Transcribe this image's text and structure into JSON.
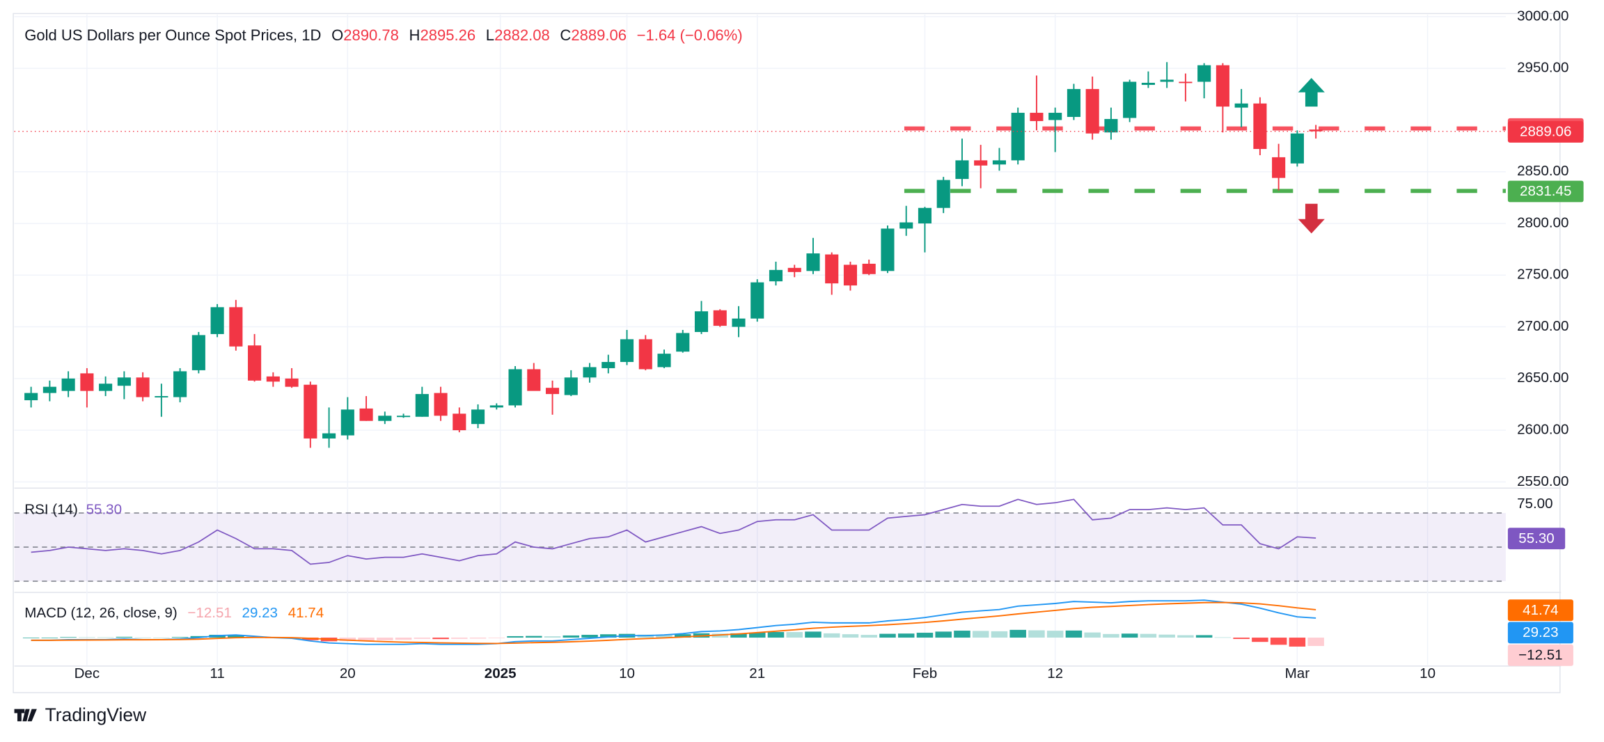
{
  "chart_data": {
    "type": "candlestick",
    "title": "Gold US Dollars per Ounce Spot Prices, 1D",
    "ohlc_labels": [
      "O",
      "H",
      "L",
      "C"
    ],
    "change": "−1.64 (−0.06%)",
    "up_color": "#089981",
    "down_color": "#f23645",
    "open": [
      2629,
      2636,
      2638,
      2655,
      2638,
      2643,
      2651,
      2632,
      2632,
      2658,
      2693,
      2719,
      2682,
      2652,
      2650,
      2644,
      2592,
      2595,
      2621,
      2609,
      2614,
      2613,
      2636,
      2616,
      2606,
      2622,
      2624,
      2659,
      2641,
      2634,
      2651,
      2660,
      2666,
      2688,
      2661,
      2676,
      2695,
      2716,
      2700,
      2708,
      2744,
      2757,
      2754,
      2770,
      2760,
      2761,
      2754,
      2795,
      2800,
      2815,
      2843,
      2861,
      2857,
      2861,
      2907,
      2900,
      2903,
      2930,
      2888,
      2902,
      2934,
      2937,
      2937,
      2937,
      2953,
      2912,
      2916,
      2864,
      2858,
      2890.78
    ],
    "high": [
      2642,
      2648,
      2657,
      2660,
      2652,
      2657,
      2656,
      2645,
      2660,
      2695,
      2722,
      2726,
      2693,
      2656,
      2660,
      2647,
      2622,
      2632,
      2633,
      2618,
      2616,
      2642,
      2642,
      2622,
      2625,
      2626,
      2662,
      2665,
      2648,
      2658,
      2665,
      2673,
      2697,
      2692,
      2678,
      2697,
      2725,
      2717,
      2720,
      2746,
      2763,
      2760,
      2786,
      2772,
      2763,
      2765,
      2798,
      2817,
      2816,
      2845,
      2882,
      2876,
      2873,
      2912,
      2943,
      2912,
      2935,
      2942,
      2912,
      2939,
      2947,
      2956,
      2945,
      2955,
      2955,
      2930,
      2922,
      2877,
      2890,
      2895.26
    ],
    "low": [
      2622,
      2628,
      2632,
      2622,
      2633,
      2630,
      2628,
      2613,
      2627,
      2655,
      2690,
      2677,
      2647,
      2642,
      2641,
      2583,
      2583,
      2591,
      2609,
      2606,
      2612,
      2613,
      2609,
      2598,
      2602,
      2620,
      2622,
      2640,
      2615,
      2633,
      2646,
      2655,
      2663,
      2658,
      2660,
      2675,
      2693,
      2700,
      2690,
      2705,
      2740,
      2748,
      2751,
      2731,
      2735,
      2750,
      2752,
      2788,
      2772,
      2810,
      2836,
      2834,
      2851,
      2857,
      2890,
      2869,
      2900,
      2881,
      2881,
      2898,
      2931,
      2931,
      2918,
      2921,
      2888,
      2893,
      2866,
      2832,
      2855,
      2882.08
    ],
    "close": [
      2636,
      2642,
      2650,
      2638,
      2645,
      2651,
      2632,
      2633,
      2657,
      2692,
      2719,
      2681,
      2648,
      2647,
      2642,
      2592,
      2597,
      2620,
      2609,
      2614,
      2614,
      2635,
      2614,
      2600,
      2620,
      2624,
      2659,
      2638,
      2635,
      2651,
      2661,
      2666,
      2688,
      2659,
      2674,
      2694,
      2715,
      2701,
      2708,
      2743,
      2755,
      2753,
      2771,
      2742,
      2740,
      2751,
      2795,
      2801,
      2815,
      2842,
      2861,
      2856,
      2861,
      2907,
      2899,
      2907,
      2930,
      2887,
      2901,
      2937,
      2936,
      2939,
      2936,
      2953,
      2913,
      2916,
      2872,
      2844,
      2887,
      2889.06
    ],
    "ylim": [
      2545,
      3002
    ],
    "yticks": [
      {
        "value": 3000,
        "label": "3000.00"
      },
      {
        "value": 2950,
        "label": "2950.00"
      },
      {
        "value": 2850,
        "label": "2850.00"
      },
      {
        "value": 2800,
        "label": "2800.00"
      },
      {
        "value": 2750,
        "label": "2750.00"
      },
      {
        "value": 2700,
        "label": "2700.00"
      },
      {
        "value": 2650,
        "label": "2650.00"
      },
      {
        "value": 2600,
        "label": "2600.00"
      },
      {
        "value": 2550,
        "label": "2550.00"
      }
    ],
    "xlim": [
      -0.9,
      79.2
    ],
    "xticks": [
      {
        "value": 3,
        "label": "Dec"
      },
      {
        "value": 10,
        "label": "11"
      },
      {
        "value": 17,
        "label": "20"
      },
      {
        "value": 25.2,
        "label": "2025"
      },
      {
        "value": 32,
        "label": "10"
      },
      {
        "value": 39,
        "label": "21"
      },
      {
        "value": 48,
        "label": "Feb"
      },
      {
        "value": 55,
        "label": "12"
      },
      {
        "value": 68,
        "label": "Mar"
      },
      {
        "value": 75,
        "label": "10"
      }
    ],
    "grid": true,
    "levels": [
      {
        "value": 2891.86,
        "color": "#f7525f"
      },
      {
        "value": 2831.45,
        "color": "#4caf50"
      }
    ],
    "rsi": {
      "title": "RSI (14)",
      "color": "#7e57c2",
      "last_value_label": "55.30",
      "values": [
        47,
        48,
        50,
        49,
        48,
        49,
        48,
        46,
        48,
        53,
        60,
        55,
        49,
        49,
        48,
        40,
        41,
        45,
        43,
        44,
        44,
        46,
        44,
        42,
        45,
        46,
        53,
        50,
        49,
        52,
        55,
        56,
        60,
        53,
        56,
        59,
        62,
        58,
        60,
        65,
        66,
        66,
        69,
        60,
        60,
        60,
        67,
        68,
        69,
        72,
        75,
        74,
        74,
        78,
        75,
        76,
        78,
        66,
        67,
        72,
        72,
        73,
        72,
        73,
        63,
        63,
        52,
        49,
        56,
        55.3
      ],
      "ylim": [
        24,
        84
      ],
      "yticks": [
        {
          "value": 75,
          "label": "75.00"
        }
      ],
      "bands": [
        70,
        50,
        30
      ]
    },
    "macd": {
      "title": "MACD (12, 26, close, 9)",
      "ylim": [
        -41,
        66
      ],
      "histogram": {
        "colors": [
          "#26a69a",
          "#b2dfdb",
          "#ff5252",
          "#ffcdd2"
        ],
        "last_value_label": "−12.51",
        "values": [
          0,
          0,
          0.8,
          0.6,
          0.5,
          1.2,
          0.2,
          0.1,
          0.9,
          2.3,
          4.2,
          4.2,
          1.8,
          -0.2,
          -0.9,
          -3.9,
          -5.5,
          -5.2,
          -5,
          -4,
          -3.2,
          -1.8,
          -2.2,
          -1.8,
          -1.4,
          -0.3,
          2.2,
          2.5,
          2,
          3.2,
          4.2,
          5,
          5.6,
          4.5,
          4.4,
          5.1,
          6.5,
          6,
          6.4,
          7.5,
          8.4,
          8.3,
          9,
          6.4,
          5.1,
          4.1,
          5.7,
          6.1,
          7.3,
          9,
          10.4,
          10,
          9.5,
          11.6,
          10.9,
          10.3,
          10.6,
          7.7,
          5.4,
          6,
          5.6,
          4.5,
          3.6,
          3.7,
          0.5,
          -2,
          -6.4,
          -10.7,
          -13.4,
          -12.51
        ]
      },
      "macd": {
        "color": "#2196f3",
        "values": [
          -4,
          -4,
          -3,
          -3,
          -3,
          -2,
          -3,
          -3,
          -2,
          0,
          3,
          4,
          2,
          0,
          -1,
          -5,
          -8,
          -9,
          -10,
          -10,
          -10,
          -9,
          -10,
          -10,
          -10,
          -9,
          -6,
          -5,
          -5,
          -3,
          -1,
          1,
          3,
          3,
          4,
          6,
          9,
          10,
          12,
          15,
          18,
          20,
          23,
          22,
          22,
          22,
          25,
          27,
          30,
          34,
          38,
          40,
          42,
          47,
          49,
          51,
          54,
          53,
          52,
          54,
          55,
          55,
          55,
          56,
          53,
          50,
          44,
          37,
          31,
          29.23
        ]
      },
      "signal": {
        "color": "#ff6d00",
        "values": [
          -4,
          -4,
          -3.8,
          -3.6,
          -3.5,
          -3.2,
          -3.2,
          -3.1,
          -2.9,
          -2.3,
          -1.2,
          -0.2,
          0.2,
          0.2,
          -0.1,
          -1.1,
          -2.5,
          -3.8,
          -5,
          -6,
          -6.8,
          -7.2,
          -7.8,
          -8.2,
          -8.6,
          -8.7,
          -8.2,
          -7.5,
          -7,
          -6.2,
          -5.2,
          -4,
          -2.6,
          -1.5,
          -0.4,
          0.9,
          2.5,
          4,
          5.6,
          7.5,
          9.6,
          11.7,
          14,
          15.6,
          16.9,
          17.9,
          19.3,
          20.9,
          22.7,
          25,
          27.6,
          30,
          32.5,
          35.4,
          38.1,
          40.7,
          43.4,
          45.3,
          46.6,
          48,
          49.4,
          50.5,
          51.4,
          52.3,
          52.5,
          52,
          50.4,
          47.7,
          44.4,
          41.74
        ]
      }
    }
  },
  "brand": "TradingView"
}
